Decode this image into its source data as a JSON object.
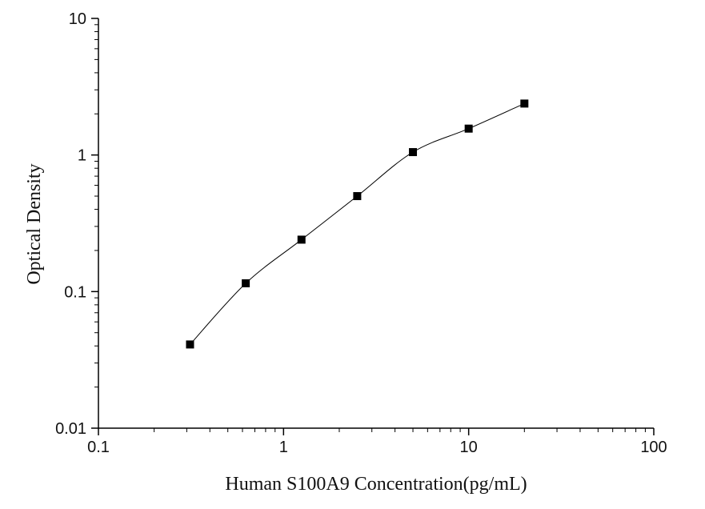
{
  "chart_data": {
    "type": "scatter",
    "title": "",
    "xlabel": "Human S100A9  Concentration(pg/mL)",
    "ylabel": "Optical Density",
    "x_scale": "log",
    "y_scale": "log",
    "xlim": [
      0.1,
      100
    ],
    "ylim": [
      0.01,
      10
    ],
    "x_ticks": [
      0.1,
      1,
      10,
      100
    ],
    "x_tick_labels": [
      "0.1",
      "1",
      "10",
      "100"
    ],
    "y_ticks": [
      0.01,
      0.1,
      1,
      10
    ],
    "y_tick_labels": [
      "0.01",
      "0.1",
      "1",
      "10"
    ],
    "grid": false,
    "legend": "none",
    "series": [
      {
        "x": [
          0.3125,
          0.625,
          1.25,
          2.5,
          5,
          10,
          20
        ],
        "y": [
          0.041,
          0.115,
          0.24,
          0.5,
          1.05,
          1.56,
          2.38
        ],
        "marker": "square",
        "marker_color": "#000000",
        "fit_curve": true,
        "line_color": "#000000"
      }
    ]
  }
}
